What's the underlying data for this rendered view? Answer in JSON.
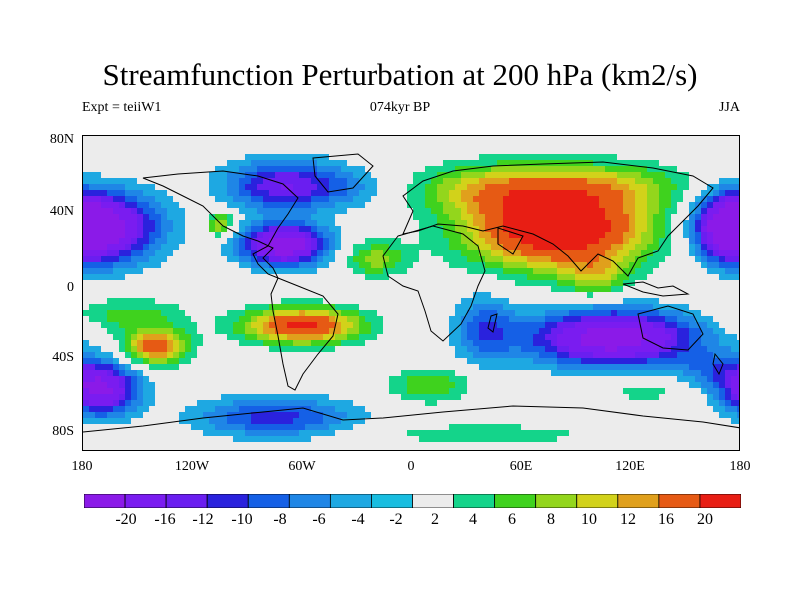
{
  "title": "Streamfunction Perturbation at 200 hPa (km2/s)",
  "left_subtitle": "Expt = teiiW1",
  "center_subtitle": "074kyr BP",
  "right_subtitle": "JJA",
  "y_ticks": [
    "80N",
    "40N",
    "0",
    "40S",
    "80S"
  ],
  "x_ticks": [
    "180",
    "120W",
    "60W",
    "0",
    "60E",
    "120E",
    "180"
  ],
  "colorbar": {
    "labels": [
      "-20",
      "-16",
      "-12",
      "-10",
      "-8",
      "-6",
      "-4",
      "-2",
      "2",
      "4",
      "6",
      "8",
      "10",
      "12",
      "16",
      "20"
    ],
    "colors": [
      "#8b1ae8",
      "#7a1cf0",
      "#6a1ef0",
      "#2a22dd",
      "#1560e6",
      "#1f86e6",
      "#1ea8e2",
      "#18bde0",
      "#ececec",
      "#14d48a",
      "#3fd21e",
      "#93d61c",
      "#d2d21a",
      "#e0a01c",
      "#e65a14",
      "#e81e14"
    ]
  },
  "chart_data": {
    "type": "filled-contour map",
    "variable": "Streamfunction Perturbation at 200 hPa",
    "units": "km2/s",
    "experiment": "teiiW1",
    "period": "074kyr BP",
    "season": "JJA",
    "lon_range": [
      -180,
      180
    ],
    "lat_range": [
      -90,
      90
    ],
    "contour_levels": [
      -20,
      -16,
      -12,
      -10,
      -8,
      -6,
      -4,
      -2,
      2,
      4,
      6,
      8,
      10,
      12,
      16,
      20
    ],
    "centers": [
      {
        "lon": 80,
        "lat": 38,
        "value": 22,
        "spread_lon": 34,
        "spread_lat": 16
      },
      {
        "lon": 45,
        "lat": 60,
        "value": 8,
        "spread_lon": 30,
        "spread_lat": 10
      },
      {
        "lon": 110,
        "lat": 62,
        "value": 6,
        "spread_lon": 30,
        "spread_lat": 9
      },
      {
        "lon": 100,
        "lat": 10,
        "value": 6,
        "spread_lon": 12,
        "spread_lat": 8
      },
      {
        "lon": -20,
        "lat": 20,
        "value": 7,
        "spread_lon": 12,
        "spread_lat": 7
      },
      {
        "lon": -105,
        "lat": 40,
        "value": 9,
        "spread_lon": 5,
        "spread_lat": 5
      },
      {
        "lon": -60,
        "lat": -18,
        "value": 17,
        "spread_lon": 22,
        "spread_lat": 7
      },
      {
        "lon": -140,
        "lat": -30,
        "value": 14,
        "spread_lon": 12,
        "spread_lat": 7
      },
      {
        "lon": -155,
        "lat": -12,
        "value": 5,
        "spread_lon": 22,
        "spread_lat": 7
      },
      {
        "lon": 10,
        "lat": -52,
        "value": 6,
        "spread_lon": 16,
        "spread_lat": 7
      },
      {
        "lon": 130,
        "lat": -55,
        "value": 3,
        "spread_lon": 22,
        "spread_lat": 6
      },
      {
        "lon": 40,
        "lat": -80,
        "value": 4,
        "spread_lon": 40,
        "spread_lat": 4
      },
      {
        "lon": -170,
        "lat": 38,
        "value": -18,
        "spread_lon": 22,
        "spread_lat": 14
      },
      {
        "lon": 175,
        "lat": 38,
        "value": -15,
        "spread_lon": 12,
        "spread_lat": 12
      },
      {
        "lon": -70,
        "lat": 28,
        "value": -20,
        "spread_lon": 16,
        "spread_lat": 8
      },
      {
        "lon": -70,
        "lat": 62,
        "value": -12,
        "spread_lon": 22,
        "spread_lat": 10
      },
      {
        "lon": 110,
        "lat": -25,
        "value": -19,
        "spread_lon": 32,
        "spread_lat": 11
      },
      {
        "lon": 40,
        "lat": -20,
        "value": -7,
        "spread_lon": 12,
        "spread_lat": 14
      },
      {
        "lon": -75,
        "lat": -70,
        "value": -9,
        "spread_lon": 30,
        "spread_lat": 8
      },
      {
        "lon": -170,
        "lat": -55,
        "value": -16,
        "spread_lon": 14,
        "spread_lat": 10
      },
      {
        "lon": -30,
        "lat": 60,
        "value": -3,
        "spread_lon": 18,
        "spread_lat": 8
      },
      {
        "lon": 170,
        "lat": -45,
        "value": -6,
        "spread_lon": 18,
        "spread_lat": 8
      }
    ]
  }
}
